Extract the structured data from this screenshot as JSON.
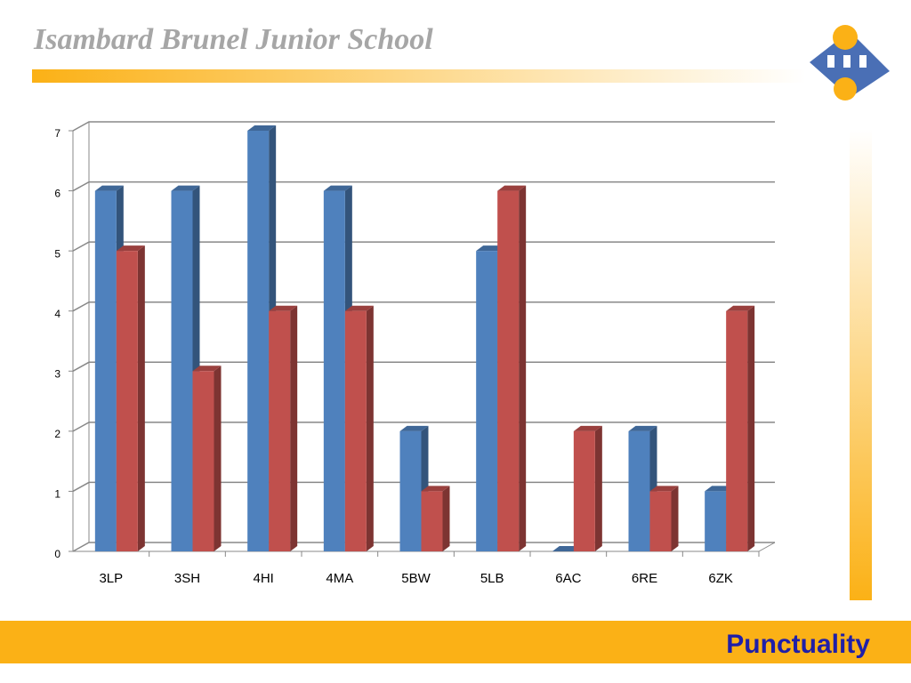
{
  "header": {
    "title": "Isambard Brunel Junior School"
  },
  "footer": {
    "title": "Punctuality"
  },
  "chart_data": {
    "type": "bar",
    "categories": [
      "3LP",
      "3SH",
      "4HI",
      "4MA",
      "5BW",
      "5LB",
      "6AC",
      "6RE",
      "6ZK"
    ],
    "series": [
      {
        "color": "#4f81bd",
        "values": [
          6,
          6,
          7,
          6,
          2,
          5,
          0,
          2,
          1
        ]
      },
      {
        "color": "#c0504d",
        "values": [
          5,
          3,
          4,
          4,
          1,
          6,
          2,
          1,
          4
        ]
      }
    ],
    "ylim": [
      0,
      7
    ],
    "yticks": [
      0,
      1,
      2,
      3,
      4,
      5,
      6,
      7
    ],
    "grid": true
  }
}
